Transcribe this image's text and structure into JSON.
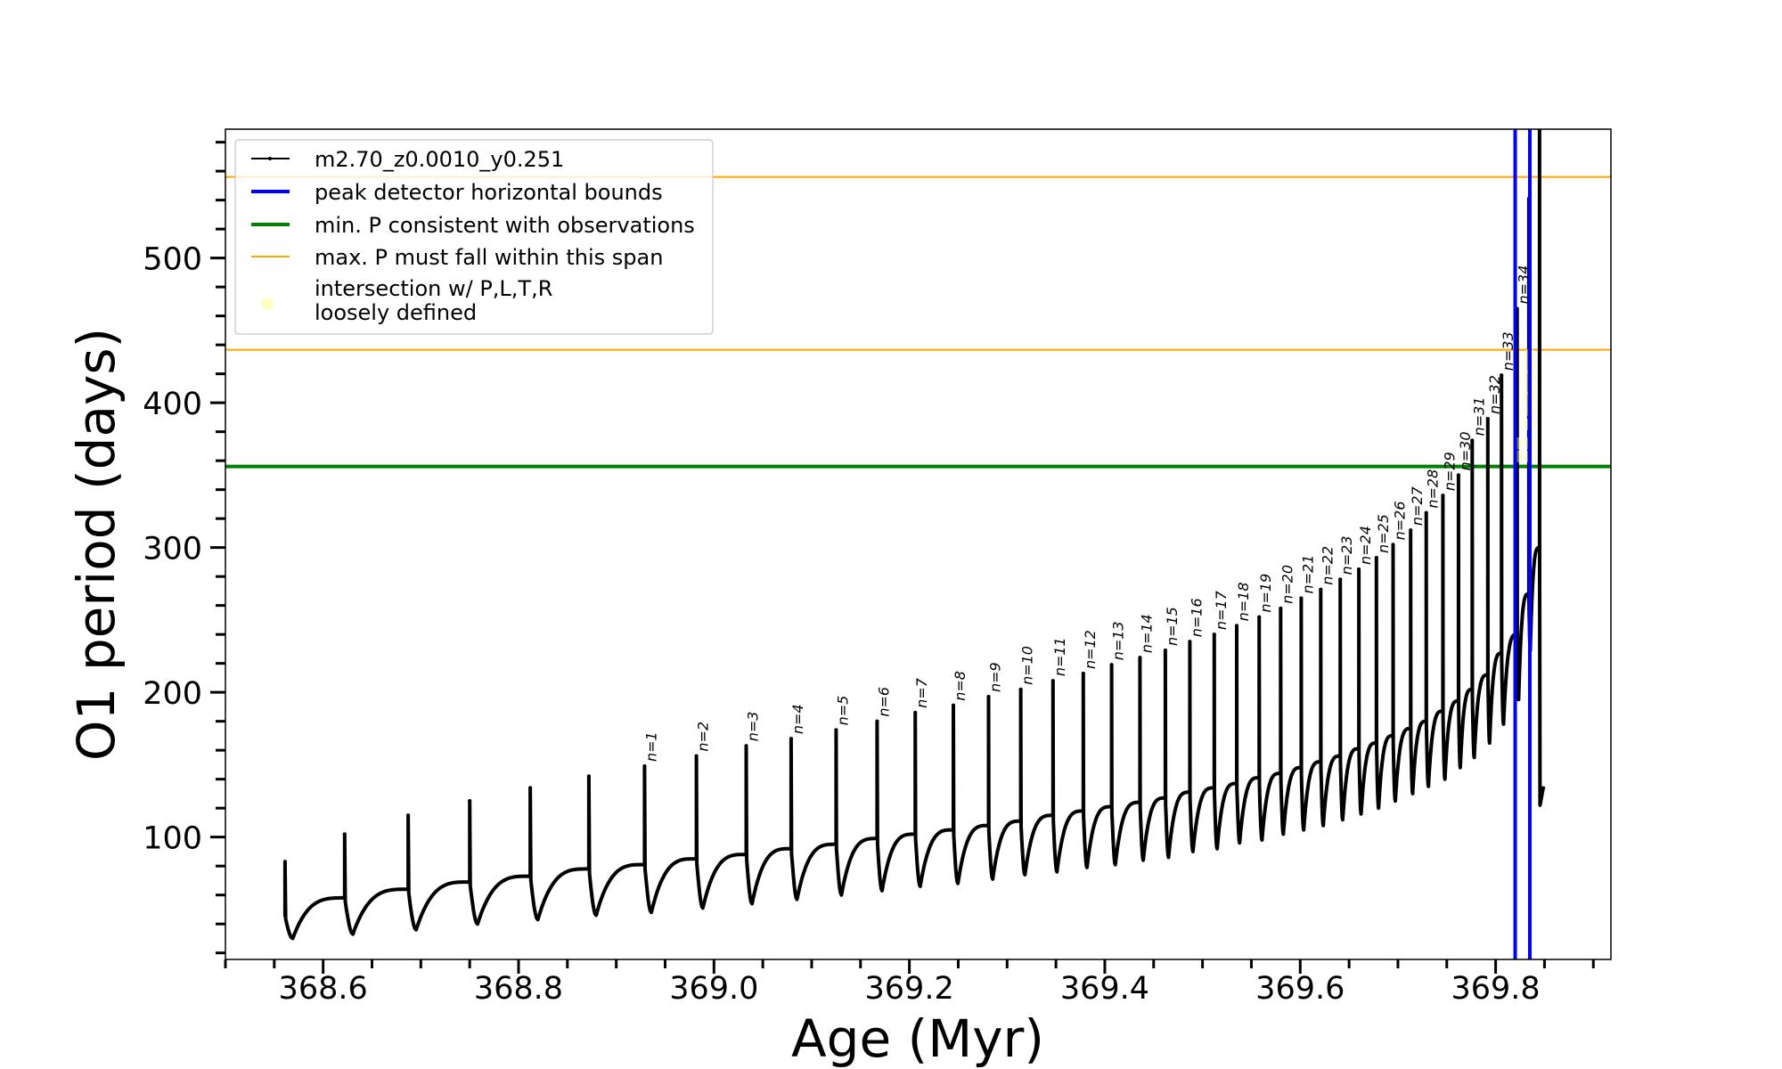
{
  "chart_data": {
    "type": "line",
    "xlabel": "Age (Myr)",
    "ylabel": "O1 period (days)",
    "xlim": [
      368.5,
      369.918
    ],
    "ylim": [
      15.5,
      589
    ],
    "x_ticks": [
      "368.6",
      "368.8",
      "369.0",
      "369.2",
      "369.4",
      "369.6",
      "369.8"
    ],
    "y_ticks": [
      "100",
      "200",
      "300",
      "400",
      "500"
    ],
    "grid": false,
    "legend_position": "top-left",
    "series": [
      {
        "name": "m2.70_z0.0010_y0.251",
        "color": "#000000",
        "pulses": [
          {
            "label": "",
            "age": 368.561,
            "before": 45,
            "peak": 83,
            "dip": 30
          },
          {
            "label": "",
            "age": 368.622,
            "before": 58,
            "peak": 102,
            "dip": 33
          },
          {
            "label": "",
            "age": 368.687,
            "before": 64,
            "peak": 115,
            "dip": 36
          },
          {
            "label": "",
            "age": 368.75,
            "before": 69,
            "peak": 125,
            "dip": 40
          },
          {
            "label": "",
            "age": 368.812,
            "before": 73,
            "peak": 134,
            "dip": 43
          },
          {
            "label": "",
            "age": 368.872,
            "before": 78,
            "peak": 142,
            "dip": 46
          },
          {
            "label": "n=1",
            "age": 368.929,
            "before": 81,
            "peak": 149,
            "dip": 48
          },
          {
            "label": "n=2",
            "age": 368.982,
            "before": 85,
            "peak": 156,
            "dip": 51
          },
          {
            "label": "n=3",
            "age": 369.033,
            "before": 88,
            "peak": 163,
            "dip": 54
          },
          {
            "label": "n=4",
            "age": 369.079,
            "before": 92,
            "peak": 168,
            "dip": 57
          },
          {
            "label": "n=5",
            "age": 369.125,
            "before": 95,
            "peak": 174,
            "dip": 60
          },
          {
            "label": "n=6",
            "age": 369.167,
            "before": 99,
            "peak": 180,
            "dip": 63
          },
          {
            "label": "n=7",
            "age": 369.206,
            "before": 102,
            "peak": 186,
            "dip": 66
          },
          {
            "label": "n=8",
            "age": 369.245,
            "before": 105,
            "peak": 191,
            "dip": 68
          },
          {
            "label": "n=9",
            "age": 369.281,
            "before": 108,
            "peak": 197,
            "dip": 71
          },
          {
            "label": "n=10",
            "age": 369.314,
            "before": 111,
            "peak": 202,
            "dip": 74
          },
          {
            "label": "n=11",
            "age": 369.347,
            "before": 115,
            "peak": 208,
            "dip": 76
          },
          {
            "label": "n=12",
            "age": 369.378,
            "before": 118,
            "peak": 213,
            "dip": 79
          },
          {
            "label": "n=13",
            "age": 369.407,
            "before": 121,
            "peak": 219,
            "dip": 81
          },
          {
            "label": "n=14",
            "age": 369.436,
            "before": 124,
            "peak": 224,
            "dip": 84
          },
          {
            "label": "n=15",
            "age": 369.462,
            "before": 127,
            "peak": 229,
            "dip": 86
          },
          {
            "label": "n=16",
            "age": 369.487,
            "before": 131,
            "peak": 235,
            "dip": 90
          },
          {
            "label": "n=17",
            "age": 369.512,
            "before": 134,
            "peak": 240,
            "dip": 92
          },
          {
            "label": "n=18",
            "age": 369.535,
            "before": 137,
            "peak": 246,
            "dip": 96
          },
          {
            "label": "n=19",
            "age": 369.558,
            "before": 141,
            "peak": 252,
            "dip": 98
          },
          {
            "label": "n=20",
            "age": 369.58,
            "before": 144,
            "peak": 258,
            "dip": 102
          },
          {
            "label": "n=21",
            "age": 369.601,
            "before": 148,
            "peak": 265,
            "dip": 105
          },
          {
            "label": "n=22",
            "age": 369.621,
            "before": 152,
            "peak": 271,
            "dip": 108
          },
          {
            "label": "n=23",
            "age": 369.641,
            "before": 156,
            "peak": 278,
            "dip": 112
          },
          {
            "label": "n=24",
            "age": 369.66,
            "before": 161,
            "peak": 285,
            "dip": 116
          },
          {
            "label": "n=25",
            "age": 369.678,
            "before": 165,
            "peak": 293,
            "dip": 120
          },
          {
            "label": "n=26",
            "age": 369.695,
            "before": 170,
            "peak": 302,
            "dip": 125
          },
          {
            "label": "n=27",
            "age": 369.713,
            "before": 175,
            "peak": 312,
            "dip": 130
          },
          {
            "label": "n=28",
            "age": 369.729,
            "before": 180,
            "peak": 324,
            "dip": 135
          },
          {
            "label": "n=29",
            "age": 369.746,
            "before": 187,
            "peak": 336,
            "dip": 140
          },
          {
            "label": "n=30",
            "age": 369.762,
            "before": 194,
            "peak": 350,
            "dip": 148
          },
          {
            "label": "n=31",
            "age": 369.776,
            "before": 202,
            "peak": 374,
            "dip": 155
          },
          {
            "label": "n=32",
            "age": 369.792,
            "before": 212,
            "peak": 389,
            "dip": 165
          },
          {
            "label": "n=33",
            "age": 369.806,
            "before": 227,
            "peak": 419,
            "dip": 178
          },
          {
            "label": "n=34",
            "age": 369.822,
            "before": 240,
            "peak": 465,
            "dip": 195
          },
          {
            "label": "",
            "age": 369.834,
            "before": 268,
            "peak": 541,
            "dip": 229
          },
          {
            "label": "",
            "age": 369.845,
            "before": 300,
            "peak": 589,
            "dip": 122
          }
        ],
        "end": {
          "age": 369.849,
          "value": 135
        }
      }
    ],
    "vertical_lines": {
      "name": "peak detector horizontal bounds",
      "color": "#0000ff",
      "ages": [
        369.82,
        369.835
      ]
    },
    "min_period_line": {
      "name": "min. P consistent with observations",
      "color": "#008000",
      "value": 356
    },
    "max_period_span": {
      "name": "max. P must fall within this span",
      "color": "#ffa500",
      "values": [
        436.6,
        556
      ]
    },
    "intersection_points": {
      "name": "intersection w/ P,L,T,R\nloosely defined",
      "color": "#ffff99",
      "points": [
        {
          "age": 369.821,
          "value": 363
        },
        {
          "age": 369.821,
          "value": 372
        },
        {
          "age": 369.835,
          "value": 363
        },
        {
          "age": 369.835,
          "value": 372
        },
        {
          "age": 369.835,
          "value": 385
        },
        {
          "age": 369.835,
          "value": 395
        },
        {
          "age": 369.835,
          "value": 403
        },
        {
          "age": 369.835,
          "value": 410
        },
        {
          "age": 369.835,
          "value": 418
        },
        {
          "age": 369.835,
          "value": 425
        },
        {
          "age": 369.835,
          "value": 433
        }
      ]
    }
  },
  "legend": {
    "items": [
      {
        "label": "m2.70_z0.0010_y0.251"
      },
      {
        "label": "peak detector horizontal bounds"
      },
      {
        "label": "min. P consistent with observations"
      },
      {
        "label": "max. P must fall within this span"
      },
      {
        "label_line1": "intersection w/ P,L,T,R",
        "label_line2": "loosely defined"
      }
    ]
  }
}
